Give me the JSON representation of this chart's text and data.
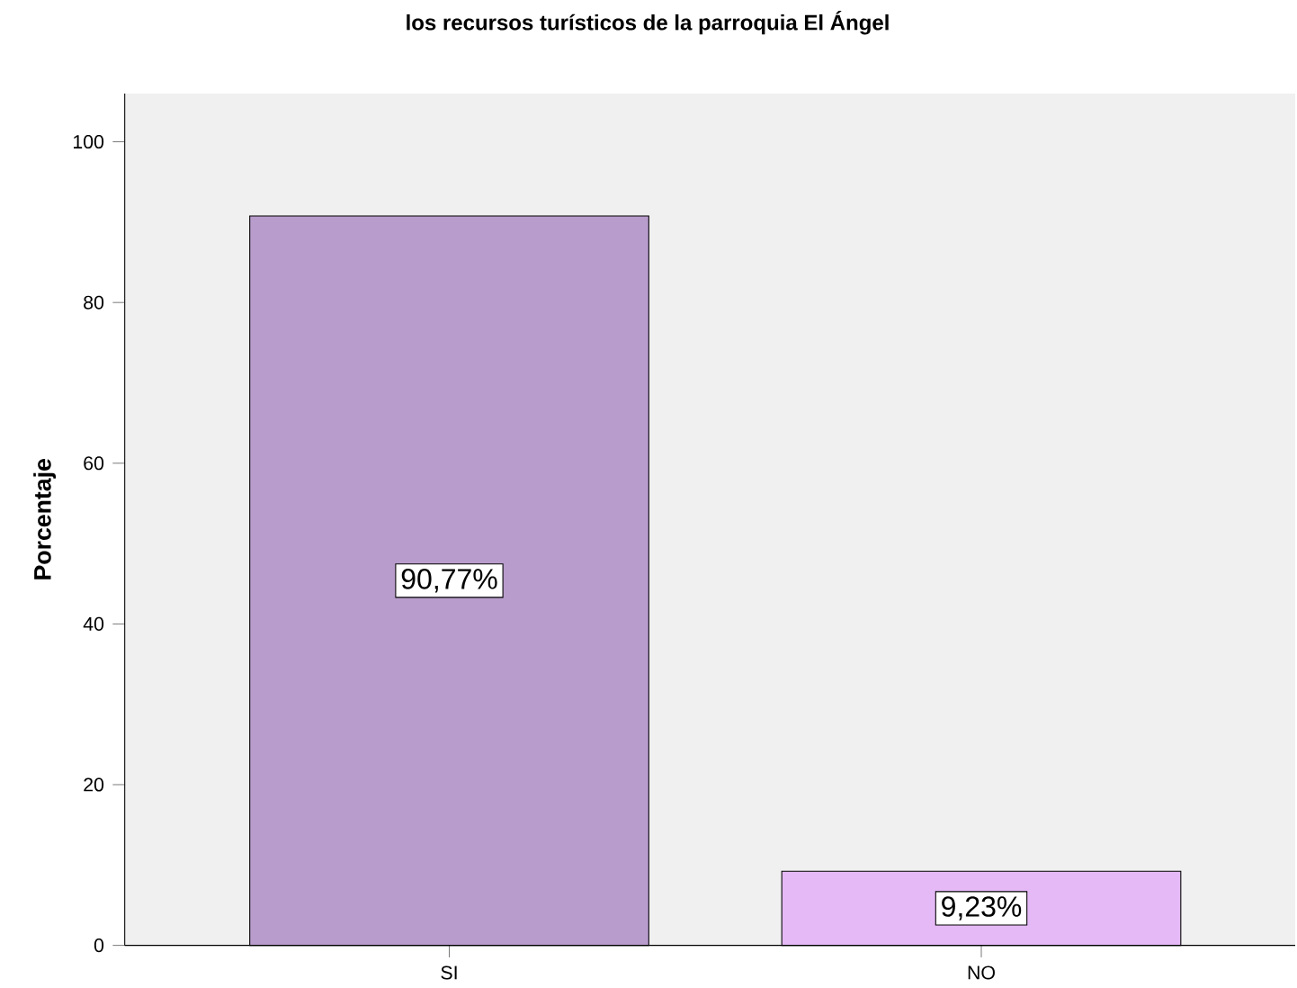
{
  "chart_data": {
    "type": "bar",
    "title": "los recursos turísticos de la parroquia El Ángel",
    "ylabel": "Porcentaje",
    "categories": [
      "SI",
      "NO"
    ],
    "values": [
      90.77,
      9.23
    ],
    "colors": [
      "#b89ccb",
      "#e5b9f5"
    ],
    "value_labels": [
      "90,77%",
      "9,23%"
    ],
    "ylim": [
      0,
      106
    ],
    "yticks": [
      0,
      20,
      40,
      60,
      80,
      100
    ]
  }
}
